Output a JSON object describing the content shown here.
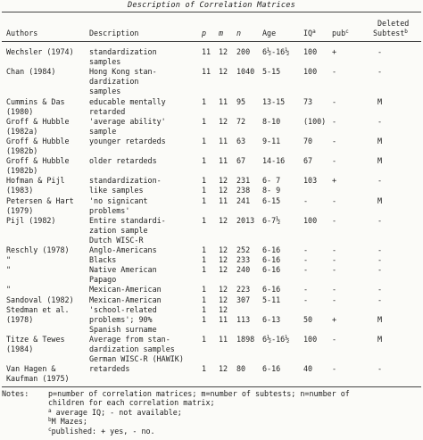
{
  "caption": "Description of Correlation Matrices",
  "headers": {
    "authors": "Authors",
    "description": "Description",
    "p": "p",
    "m": "m",
    "n": "n",
    "age": "Age",
    "iq": "IQ",
    "iq_sup": "a",
    "pub": "pub",
    "pub_sup": "c",
    "deleted_line1": "Deleted",
    "deleted_line2": "Subtest",
    "deleted_sup": "b"
  },
  "lines": [
    {
      "author": "Wechsler (1974)",
      "desc": "standardization",
      "p": "11",
      "m": "12",
      "n": "200",
      "age": "6½-16½",
      "iq": "100",
      "pub": "+",
      "del": "-"
    },
    {
      "author": "",
      "desc": "samples"
    },
    {
      "author": "Chan (1984)",
      "desc": "Hong Kong stan-",
      "p": "11",
      "m": "12",
      "n": "1040",
      "age": "5-15",
      "iq": "100",
      "pub": "-",
      "del": "-"
    },
    {
      "author": "",
      "desc": "dardization"
    },
    {
      "author": "",
      "desc": "samples"
    },
    {
      "author": "Cummins & Das",
      "desc": "educable mentally",
      "p": "1",
      "m": "11",
      "n": "95",
      "age": "13-15",
      "iq": "73",
      "pub": "-",
      "del": "M"
    },
    {
      "author": "(1980)",
      "desc": "retarded"
    },
    {
      "author": "Groff & Hubble",
      "desc": "'average ability'",
      "p": "1",
      "m": "12",
      "n": "72",
      "age": "8-10",
      "iq": "(100)",
      "pub": "-",
      "del": "-"
    },
    {
      "author": "(1982a)",
      "desc": "sample"
    },
    {
      "author": "Groff & Hubble",
      "desc": "younger retardeds",
      "p": "1",
      "m": "11",
      "n": "63",
      "age": "9-11",
      "iq": "70",
      "pub": "-",
      "del": "M"
    },
    {
      "author": "(1982b)",
      "desc": ""
    },
    {
      "author": "Groff & Hubble",
      "desc": "older retardeds",
      "p": "1",
      "m": "11",
      "n": "67",
      "age": "14-16",
      "iq": "67",
      "pub": "-",
      "del": "M"
    },
    {
      "author": "(1982b)",
      "desc": ""
    },
    {
      "author": "Hofman & Pijl",
      "desc": "standardization-",
      "p": "1",
      "m": "12",
      "n": "231",
      "age": "6- 7",
      "iq": "103",
      "pub": "+",
      "del": "-"
    },
    {
      "author": "(1983)",
      "desc": "like samples",
      "p": "1",
      "m": "12",
      "n": "238",
      "age": "8- 9"
    },
    {
      "author": "Petersen & Hart",
      "desc": "'no signicant",
      "p": "1",
      "m": "11",
      "n": "241",
      "age": "6-15",
      "iq": "-",
      "pub": "-",
      "del": "M"
    },
    {
      "author": "(1979)",
      "desc": "problems'"
    },
    {
      "author": "Pijl (1982)",
      "desc": "Entire standardi-",
      "p": "1",
      "m": "12",
      "n": "2013",
      "age": "6-7½",
      "iq": "100",
      "pub": "-",
      "del": "-"
    },
    {
      "author": "",
      "desc": "zation sample"
    },
    {
      "author": "",
      "desc": "Dutch WISC-R"
    },
    {
      "author": "Reschly (1978)",
      "desc": "Anglo-Americans",
      "p": "1",
      "m": "12",
      "n": "252",
      "age": "6-16",
      "iq": "-",
      "pub": "-",
      "del": "-"
    },
    {
      "author": "\"",
      "desc": "Blacks",
      "p": "1",
      "m": "12",
      "n": "233",
      "age": "6-16",
      "iq": "-",
      "pub": "-",
      "del": "-"
    },
    {
      "author": "\"",
      "desc": "Native American",
      "p": "1",
      "m": "12",
      "n": "240",
      "age": "6-16",
      "iq": "-",
      "pub": "-",
      "del": "-"
    },
    {
      "author": "",
      "desc": "Papago"
    },
    {
      "author": "\"",
      "desc": "Mexican-American",
      "p": "1",
      "m": "12",
      "n": "223",
      "age": "6-16",
      "iq": "-",
      "pub": "-",
      "del": "-"
    },
    {
      "author": "Sandoval (1982)",
      "desc": "Mexican-American",
      "p": "1",
      "m": "12",
      "n": "307",
      "age": "5-11",
      "iq": "-",
      "pub": "-",
      "del": "-"
    },
    {
      "author": "Stedman et al.",
      "desc": "'school-related",
      "p": "1",
      "m": "12",
      "n": "",
      "age": "",
      "iq": "",
      "pub": "",
      "del": ""
    },
    {
      "author": "(1978)",
      "desc": "problems'; 90%",
      "p": "1",
      "m": "11",
      "n": "113",
      "age": "6-13",
      "iq": "50",
      "pub": "+",
      "del": "M"
    },
    {
      "author": "",
      "desc": "Spanish surname"
    },
    {
      "author": "Titze & Tewes",
      "desc": "Average from stan-",
      "p": "1",
      "m": "11",
      "n": "1898",
      "age": "6½-16½",
      "iq": "100",
      "pub": "-",
      "del": "M"
    },
    {
      "author": "(1984)",
      "desc": "dardization samples"
    },
    {
      "author": "",
      "desc": "German WISC-R (HAWIK)"
    },
    {
      "author": "Van Hagen &",
      "desc": "retardeds",
      "p": "1",
      "m": "12",
      "n": "80",
      "age": "6-16",
      "iq": "40",
      "pub": "-",
      "del": "-"
    },
    {
      "author": "Kaufman (1975)",
      "desc": ""
    }
  ],
  "notes": {
    "label": "Notes:",
    "line1": "p=number of correlation matrices; m=number of subtests; n=number of",
    "line2": "children for each correlation matrix;",
    "a_sup": "a",
    "a_text": " average IQ; - not available;",
    "b_sup": "b",
    "b_text": "M Mazes;",
    "c_sup": "c",
    "c_text": "published: + yes, - no."
  }
}
